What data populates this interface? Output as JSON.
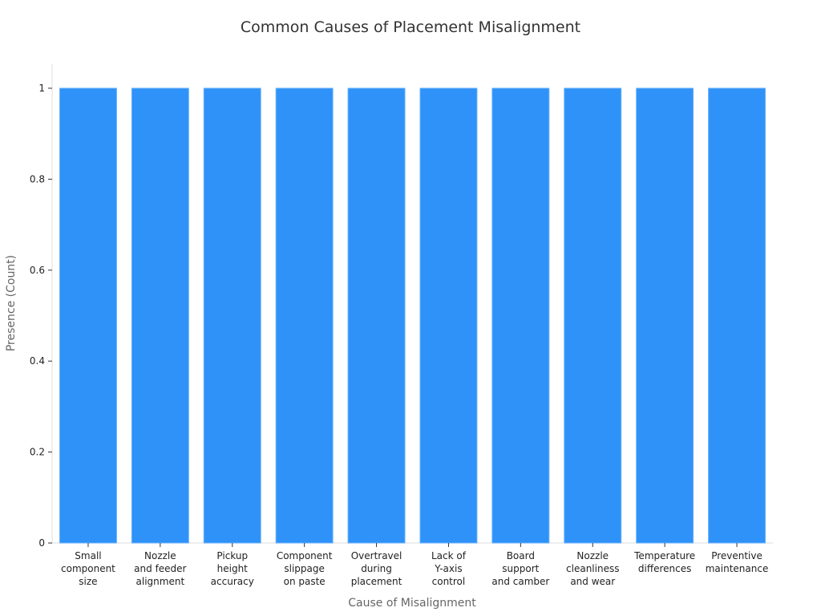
{
  "chart_data": {
    "type": "bar",
    "title": "Common Causes of Placement Misalignment",
    "xlabel": "Cause of Misalignment",
    "ylabel": "Presence (Count)",
    "ylim": [
      0,
      1.05
    ],
    "yticks": [
      "0",
      "0.2",
      "0.4",
      "0.6",
      "0.8",
      "1"
    ],
    "ytick_values": [
      0,
      0.2,
      0.4,
      0.6,
      0.8,
      1
    ],
    "categories": [
      "Small component size",
      "Nozzle and feeder alignment",
      "Pickup height accuracy",
      "Component slippage on paste",
      "Overtravel during placement",
      "Lack of Y-axis control",
      "Board support and camber",
      "Nozzle cleanliness and wear",
      "Temperature differences",
      "Preventive maintenance"
    ],
    "category_lines": [
      [
        "Small",
        "component",
        "size"
      ],
      [
        "Nozzle",
        "and feeder",
        "alignment"
      ],
      [
        "Pickup",
        "height",
        "accuracy"
      ],
      [
        "Component",
        "slippage",
        "on paste"
      ],
      [
        "Overtravel",
        "during",
        "placement"
      ],
      [
        "Lack of",
        "Y-axis",
        "control"
      ],
      [
        "Board",
        "support",
        "and camber"
      ],
      [
        "Nozzle",
        "cleanliness",
        "and wear"
      ],
      [
        "Temperature",
        "differences"
      ],
      [
        "Preventive",
        "maintenance"
      ]
    ],
    "values": [
      1,
      1,
      1,
      1,
      1,
      1,
      1,
      1,
      1,
      1
    ],
    "bar_color": "#2f92f8",
    "grid": false,
    "legend": "none"
  }
}
